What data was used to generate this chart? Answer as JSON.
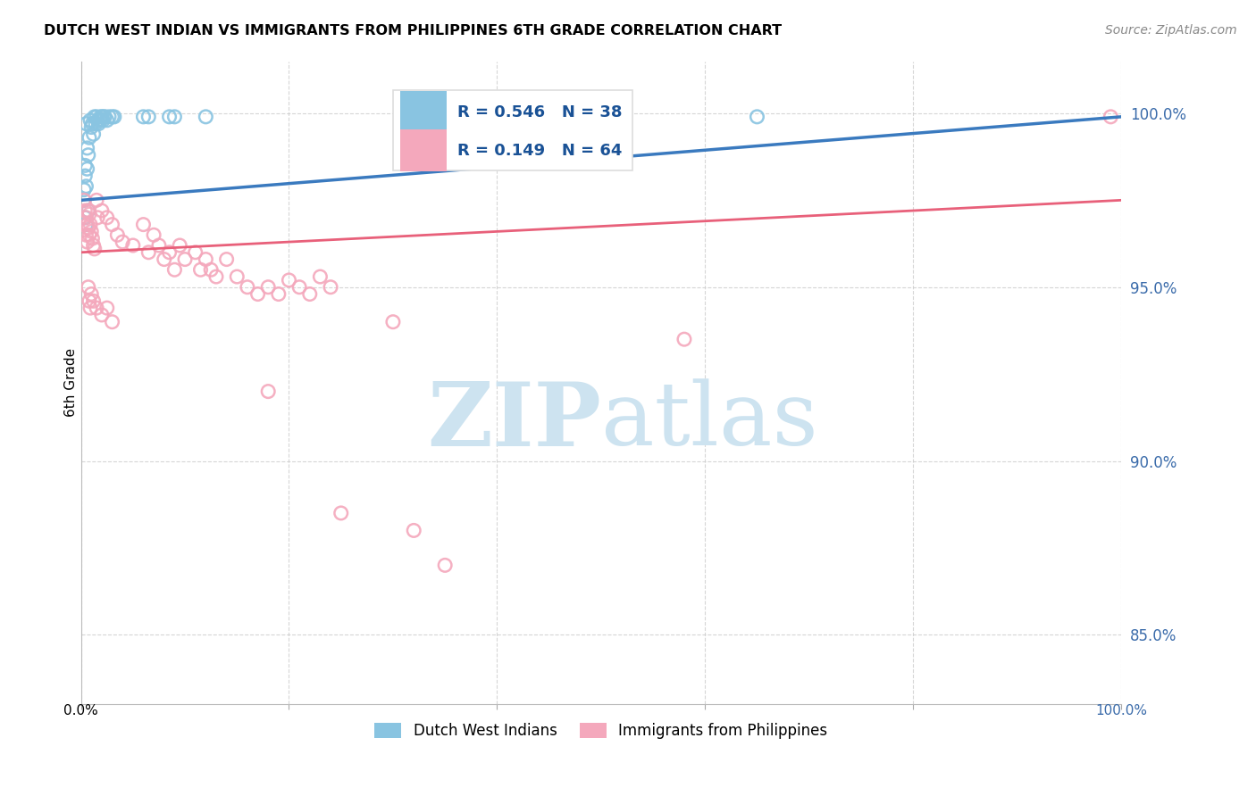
{
  "title": "DUTCH WEST INDIAN VS IMMIGRANTS FROM PHILIPPINES 6TH GRADE CORRELATION CHART",
  "source": "Source: ZipAtlas.com",
  "ylabel": "6th Grade",
  "x_range": [
    0.0,
    100.0
  ],
  "y_range": [
    83.0,
    101.5
  ],
  "y_ticks": [
    85.0,
    90.0,
    95.0,
    100.0
  ],
  "y_tick_labels": [
    "85.0%",
    "90.0%",
    "95.0%",
    "100.0%"
  ],
  "x_ticks": [
    0,
    20,
    40,
    60,
    80,
    100
  ],
  "legend_text": [
    "R = 0.546   N = 38",
    "R = 0.149   N = 64"
  ],
  "legend_label_blue": "Dutch West Indians",
  "legend_label_pink": "Immigrants from Philippines",
  "blue_color": "#89c4e1",
  "pink_color": "#f4a8bc",
  "blue_line_color": "#3a7abf",
  "pink_line_color": "#e8607a",
  "legend_r_color": "#1a5296",
  "tick_color": "#3a6baa",
  "blue_points": [
    [
      0.5,
      99.7
    ],
    [
      0.8,
      99.3
    ],
    [
      0.9,
      99.8
    ],
    [
      1.0,
      99.6
    ],
    [
      1.1,
      99.7
    ],
    [
      1.2,
      99.4
    ],
    [
      1.3,
      99.9
    ],
    [
      1.4,
      99.7
    ],
    [
      1.5,
      99.9
    ],
    [
      1.6,
      99.8
    ],
    [
      1.7,
      99.7
    ],
    [
      1.8,
      99.8
    ],
    [
      1.9,
      99.9
    ],
    [
      2.0,
      99.9
    ],
    [
      2.1,
      99.8
    ],
    [
      2.2,
      99.9
    ],
    [
      2.3,
      99.9
    ],
    [
      2.5,
      99.8
    ],
    [
      2.7,
      99.9
    ],
    [
      3.0,
      99.9
    ],
    [
      3.2,
      99.9
    ],
    [
      0.3,
      97.8
    ],
    [
      0.4,
      98.5
    ],
    [
      0.6,
      99.0
    ],
    [
      0.7,
      98.8
    ],
    [
      0.4,
      98.2
    ],
    [
      0.5,
      97.9
    ],
    [
      0.6,
      98.4
    ],
    [
      0.3,
      97.5
    ],
    [
      0.4,
      97.0
    ],
    [
      0.5,
      96.8
    ],
    [
      0.7,
      97.2
    ],
    [
      6.0,
      99.9
    ],
    [
      6.5,
      99.9
    ],
    [
      8.5,
      99.9
    ],
    [
      9.0,
      99.9
    ],
    [
      12.0,
      99.9
    ],
    [
      65.0,
      99.9
    ]
  ],
  "pink_points": [
    [
      0.3,
      97.5
    ],
    [
      0.4,
      97.2
    ],
    [
      0.5,
      97.0
    ],
    [
      0.5,
      96.5
    ],
    [
      0.6,
      96.8
    ],
    [
      0.6,
      96.3
    ],
    [
      0.7,
      97.2
    ],
    [
      0.7,
      96.7
    ],
    [
      0.8,
      97.1
    ],
    [
      0.8,
      96.5
    ],
    [
      0.9,
      96.8
    ],
    [
      1.0,
      96.6
    ],
    [
      1.1,
      96.4
    ],
    [
      1.2,
      96.2
    ],
    [
      1.3,
      96.1
    ],
    [
      1.5,
      97.5
    ],
    [
      1.6,
      97.0
    ],
    [
      2.0,
      97.2
    ],
    [
      2.5,
      97.0
    ],
    [
      3.0,
      96.8
    ],
    [
      3.5,
      96.5
    ],
    [
      4.0,
      96.3
    ],
    [
      5.0,
      96.2
    ],
    [
      6.0,
      96.8
    ],
    [
      6.5,
      96.0
    ],
    [
      7.0,
      96.5
    ],
    [
      7.5,
      96.2
    ],
    [
      8.0,
      95.8
    ],
    [
      8.5,
      96.0
    ],
    [
      9.0,
      95.5
    ],
    [
      9.5,
      96.2
    ],
    [
      10.0,
      95.8
    ],
    [
      11.0,
      96.0
    ],
    [
      11.5,
      95.5
    ],
    [
      12.0,
      95.8
    ],
    [
      12.5,
      95.5
    ],
    [
      13.0,
      95.3
    ],
    [
      14.0,
      95.8
    ],
    [
      15.0,
      95.3
    ],
    [
      16.0,
      95.0
    ],
    [
      17.0,
      94.8
    ],
    [
      18.0,
      95.0
    ],
    [
      19.0,
      94.8
    ],
    [
      20.0,
      95.2
    ],
    [
      21.0,
      95.0
    ],
    [
      22.0,
      94.8
    ],
    [
      23.0,
      95.3
    ],
    [
      24.0,
      95.0
    ],
    [
      0.7,
      95.0
    ],
    [
      0.8,
      94.6
    ],
    [
      0.9,
      94.4
    ],
    [
      1.0,
      94.8
    ],
    [
      1.2,
      94.6
    ],
    [
      1.5,
      94.4
    ],
    [
      2.0,
      94.2
    ],
    [
      2.5,
      94.4
    ],
    [
      3.0,
      94.0
    ],
    [
      30.0,
      94.0
    ],
    [
      18.0,
      92.0
    ],
    [
      25.0,
      88.5
    ],
    [
      32.0,
      88.0
    ],
    [
      58.0,
      93.5
    ],
    [
      99.0,
      99.9
    ],
    [
      35.0,
      87.0
    ]
  ],
  "blue_trendline_x": [
    0.0,
    100.0
  ],
  "blue_trendline_y": [
    97.5,
    99.9
  ],
  "pink_trendline_x": [
    0.0,
    100.0
  ],
  "pink_trendline_y": [
    96.0,
    97.5
  ],
  "watermark_zip": "ZIP",
  "watermark_atlas": "atlas",
  "watermark_color": "#cde3f0",
  "background_color": "#ffffff",
  "grid_color": "#cccccc",
  "grid_style": "--"
}
